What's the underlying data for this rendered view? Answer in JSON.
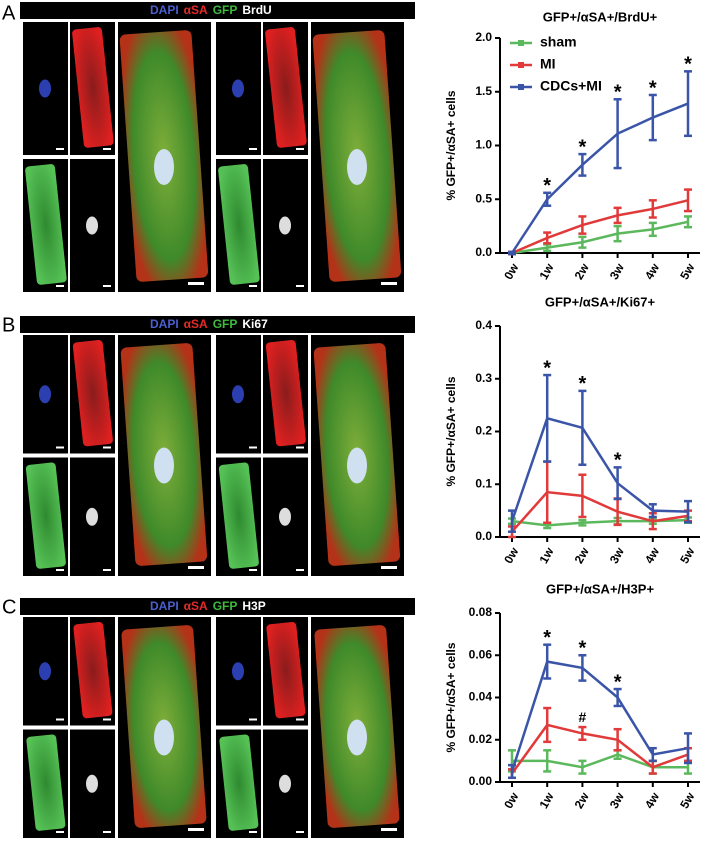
{
  "panels": [
    {
      "label": "A",
      "stains": [
        "DAPI",
        "αSA",
        "GFP",
        "BrdU"
      ]
    },
    {
      "label": "B",
      "stains": [
        "DAPI",
        "αSA",
        "GFP",
        "Ki67"
      ]
    },
    {
      "label": "C",
      "stains": [
        "DAPI",
        "αSA",
        "GFP",
        "H3P"
      ]
    }
  ],
  "chart_data": [
    {
      "type": "line",
      "title": "GFP+/αSA+/BrdU+",
      "y_label": "% GFP+/αSA+ cells",
      "categories": [
        "0w",
        "1w",
        "2w",
        "3w",
        "4w",
        "5w"
      ],
      "ylim": [
        0,
        2.0
      ],
      "yticks": [
        {
          "value": 0,
          "label": "0.0"
        },
        {
          "value": 0.5,
          "label": "0.5"
        },
        {
          "value": 1,
          "label": "1.0"
        },
        {
          "value": 1.5,
          "label": "1.5"
        },
        {
          "value": 2,
          "label": "2.0"
        }
      ],
      "legend": "upper left",
      "series": [
        {
          "name": "sham",
          "color": "#5cb85c",
          "values": [
            0,
            0.05,
            0.1,
            0.18,
            0.22,
            0.29
          ],
          "errors": [
            0.01,
            0.03,
            0.05,
            0.07,
            0.06,
            0.05
          ]
        },
        {
          "name": "MI",
          "color": "#e03a3a",
          "values": [
            0,
            0.14,
            0.26,
            0.35,
            0.41,
            0.49
          ],
          "errors": [
            0.01,
            0.05,
            0.08,
            0.07,
            0.08,
            0.1
          ]
        },
        {
          "name": "CDCs+MI",
          "color": "#3a55a8",
          "values": [
            0,
            0.5,
            0.82,
            1.11,
            1.26,
            1.39
          ],
          "errors": [
            0.01,
            0.06,
            0.1,
            0.32,
            0.21,
            0.3
          ]
        }
      ],
      "annotations": [
        {
          "text": "*",
          "category": "1w",
          "series": "CDCs+MI"
        },
        {
          "text": "*",
          "category": "2w",
          "series": "CDCs+MI"
        },
        {
          "text": "*",
          "category": "3w",
          "series": "CDCs+MI"
        },
        {
          "text": "*",
          "category": "4w",
          "series": "CDCs+MI"
        },
        {
          "text": "*",
          "category": "5w",
          "series": "CDCs+MI"
        }
      ]
    },
    {
      "type": "line",
      "title": "GFP+/αSA+/Ki67+",
      "y_label": "% GFP+/αSA+ cells",
      "categories": [
        "0w",
        "1w",
        "2w",
        "3w",
        "4w",
        "5w"
      ],
      "ylim": [
        0,
        0.4
      ],
      "yticks": [
        {
          "value": 0,
          "label": "0.0"
        },
        0.1,
        0.2,
        0.3,
        0.4
      ],
      "series": [
        {
          "name": "sham",
          "color": "#5cb85c",
          "values": [
            0.03,
            0.022,
            0.027,
            0.03,
            0.03,
            0.032
          ],
          "errors": [
            0.005,
            0.005,
            0.005,
            0.006,
            0.005,
            0.005
          ]
        },
        {
          "name": "MI",
          "color": "#e03a3a",
          "values": [
            0.01,
            0.085,
            0.078,
            0.048,
            0.03,
            0.04
          ],
          "errors": [
            0.01,
            0.058,
            0.04,
            0.025,
            0.015,
            0.01
          ]
        },
        {
          "name": "CDCs+MI",
          "color": "#3a55a8",
          "values": [
            0.03,
            0.225,
            0.207,
            0.102,
            0.05,
            0.048
          ],
          "errors": [
            0.02,
            0.082,
            0.07,
            0.03,
            0.012,
            0.02
          ]
        }
      ],
      "annotations": [
        {
          "text": "*",
          "category": "1w",
          "series": "CDCs+MI"
        },
        {
          "text": "*",
          "category": "2w",
          "series": "CDCs+MI"
        },
        {
          "text": "*",
          "category": "3w",
          "series": "CDCs+MI"
        }
      ]
    },
    {
      "type": "line",
      "title": "GFP+/αSA+/H3P+",
      "y_label": "% GFP+/αSA+ cells",
      "categories": [
        "0w",
        "1w",
        "2w",
        "3w",
        "4w",
        "5w"
      ],
      "ylim": [
        0,
        0.08
      ],
      "yticks": [
        {
          "value": 0,
          "label": "0.00"
        },
        {
          "value": 0.02,
          "label": "0.02"
        },
        {
          "value": 0.04,
          "label": "0.04"
        },
        {
          "value": 0.06,
          "label": "0.06"
        },
        {
          "value": 0.08,
          "label": "0.08"
        }
      ],
      "series": [
        {
          "name": "sham",
          "color": "#5cb85c",
          "values": [
            0.01,
            0.01,
            0.007,
            0.013,
            0.007,
            0.007
          ],
          "errors": [
            0.005,
            0.005,
            0.003,
            0.002,
            0.003,
            0.003
          ]
        },
        {
          "name": "MI",
          "color": "#e03a3a",
          "values": [
            0.004,
            0.027,
            0.023,
            0.02,
            0.007,
            0.013
          ],
          "errors": [
            0.002,
            0.008,
            0.003,
            0.005,
            0.003,
            0.003
          ]
        },
        {
          "name": "CDCs+MI",
          "color": "#3a55a8",
          "values": [
            0.005,
            0.057,
            0.054,
            0.04,
            0.013,
            0.016
          ],
          "errors": [
            0.003,
            0.008,
            0.006,
            0.004,
            0.003,
            0.007
          ]
        }
      ],
      "annotations": [
        {
          "text": "*",
          "category": "1w",
          "series": "CDCs+MI"
        },
        {
          "text": "*",
          "category": "2w",
          "series": "CDCs+MI"
        },
        {
          "text": "*",
          "category": "3w",
          "series": "CDCs+MI"
        },
        {
          "text": "#",
          "category": "2w",
          "series": "MI"
        }
      ]
    }
  ]
}
